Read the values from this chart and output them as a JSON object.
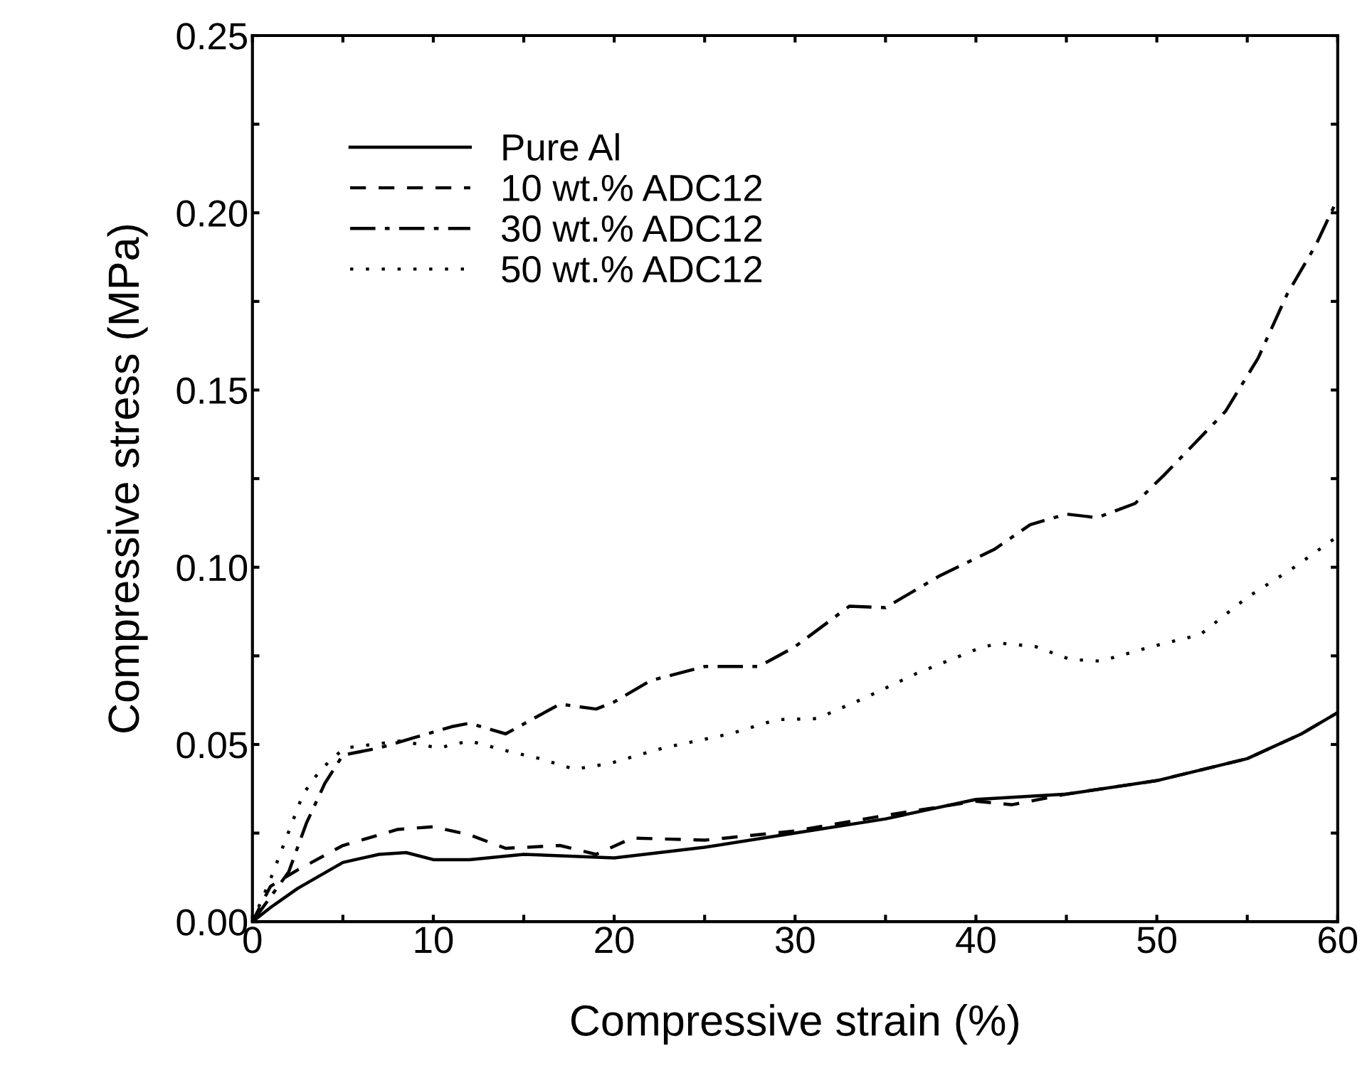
{
  "chart_data": {
    "type": "line",
    "xlabel": "Compressive strain (%)",
    "ylabel": "Compressive stress (MPa)",
    "xlim": [
      0,
      60
    ],
    "ylim": [
      0,
      0.25
    ],
    "xticks": [
      0,
      {
        "value": 5,
        "label": null
      },
      10,
      {
        "value": 15,
        "label": null
      },
      20,
      {
        "value": 25,
        "label": null
      },
      30,
      {
        "value": 35,
        "label": null
      },
      40,
      {
        "value": 45,
        "label": null
      },
      50,
      {
        "value": 55,
        "label": null
      },
      60
    ],
    "yticks": [
      {
        "value": 0,
        "label": "0.00"
      },
      {
        "value": 0.025,
        "label": null
      },
      {
        "value": 0.05,
        "label": "0.05"
      },
      {
        "value": 0.075,
        "label": null
      },
      {
        "value": 0.1,
        "label": "0.10"
      },
      {
        "value": 0.125,
        "label": null
      },
      {
        "value": 0.15,
        "label": "0.15"
      },
      {
        "value": 0.175,
        "label": null
      },
      {
        "value": 0.2,
        "label": "0.20"
      },
      {
        "value": 0.225,
        "label": null
      },
      {
        "value": 0.25,
        "label": "0.25"
      }
    ],
    "grid": false,
    "legend": "top left",
    "marker": "none",
    "series": [
      {
        "name": "Pure Al",
        "color": "#000000",
        "line_style": "solid",
        "x": [
          0,
          1,
          2.5,
          5,
          7,
          8.5,
          10,
          12,
          15,
          20,
          25,
          30,
          35,
          40,
          45,
          50,
          55,
          58,
          60
        ],
        "values": [
          0,
          0.004,
          0.0094,
          0.0167,
          0.019,
          0.0195,
          0.0175,
          0.0175,
          0.019,
          0.018,
          0.021,
          0.025,
          0.029,
          0.0345,
          0.036,
          0.0398,
          0.046,
          0.053,
          0.059
        ]
      },
      {
        "name": "10 wt.% ADC12",
        "color": "#000000",
        "line_style": "dashed",
        "x": [
          0,
          1,
          2.5,
          5,
          8,
          10,
          12,
          14,
          17,
          19,
          21,
          25,
          30,
          35,
          40,
          42,
          45,
          50,
          55,
          58,
          60
        ],
        "values": [
          0,
          0.01,
          0.0146,
          0.0215,
          0.026,
          0.0268,
          0.0245,
          0.0207,
          0.0215,
          0.019,
          0.0236,
          0.023,
          0.0256,
          0.03,
          0.034,
          0.033,
          0.036,
          0.0398,
          0.046,
          0.053,
          0.059
        ]
      },
      {
        "name": "30 wt.% ADC12",
        "color": "#000000",
        "line_style": "dashdot",
        "x": [
          0,
          2,
          3,
          4,
          5,
          7,
          9,
          11,
          12,
          14,
          17,
          19,
          20,
          22,
          25,
          28,
          30,
          33,
          35,
          38,
          41,
          43,
          45,
          46.7,
          48.8,
          50.4,
          53.8,
          55.6,
          57.2,
          58.8,
          60
        ],
        "values": [
          0,
          0.014,
          0.028,
          0.039,
          0.047,
          0.049,
          0.052,
          0.055,
          0.056,
          0.053,
          0.0614,
          0.06,
          0.062,
          0.068,
          0.072,
          0.072,
          0.0776,
          0.089,
          0.0886,
          0.0976,
          0.105,
          0.112,
          0.115,
          0.114,
          0.118,
          0.126,
          0.144,
          0.159,
          0.177,
          0.191,
          0.204
        ]
      },
      {
        "name": "50 wt.% ADC12",
        "color": "#000000",
        "line_style": "dotted",
        "x": [
          0,
          1,
          2.8,
          3.5,
          4.2,
          5.1,
          8.2,
          10.3,
          12,
          14.2,
          15.9,
          17.8,
          19.8,
          22.7,
          26.4,
          29,
          31.2,
          33.8,
          36.7,
          40.4,
          41.5,
          43.3,
          45.2,
          46.9,
          49.7,
          52.4,
          55,
          57.6,
          59.8
        ],
        "values": [
          0,
          0.012,
          0.036,
          0.041,
          0.045,
          0.049,
          0.051,
          0.049,
          0.051,
          0.048,
          0.046,
          0.043,
          0.0447,
          0.049,
          0.053,
          0.057,
          0.0573,
          0.063,
          0.07,
          0.0776,
          0.0785,
          0.0776,
          0.074,
          0.0735,
          0.0776,
          0.081,
          0.0915,
          0.1,
          0.108
        ]
      }
    ]
  }
}
